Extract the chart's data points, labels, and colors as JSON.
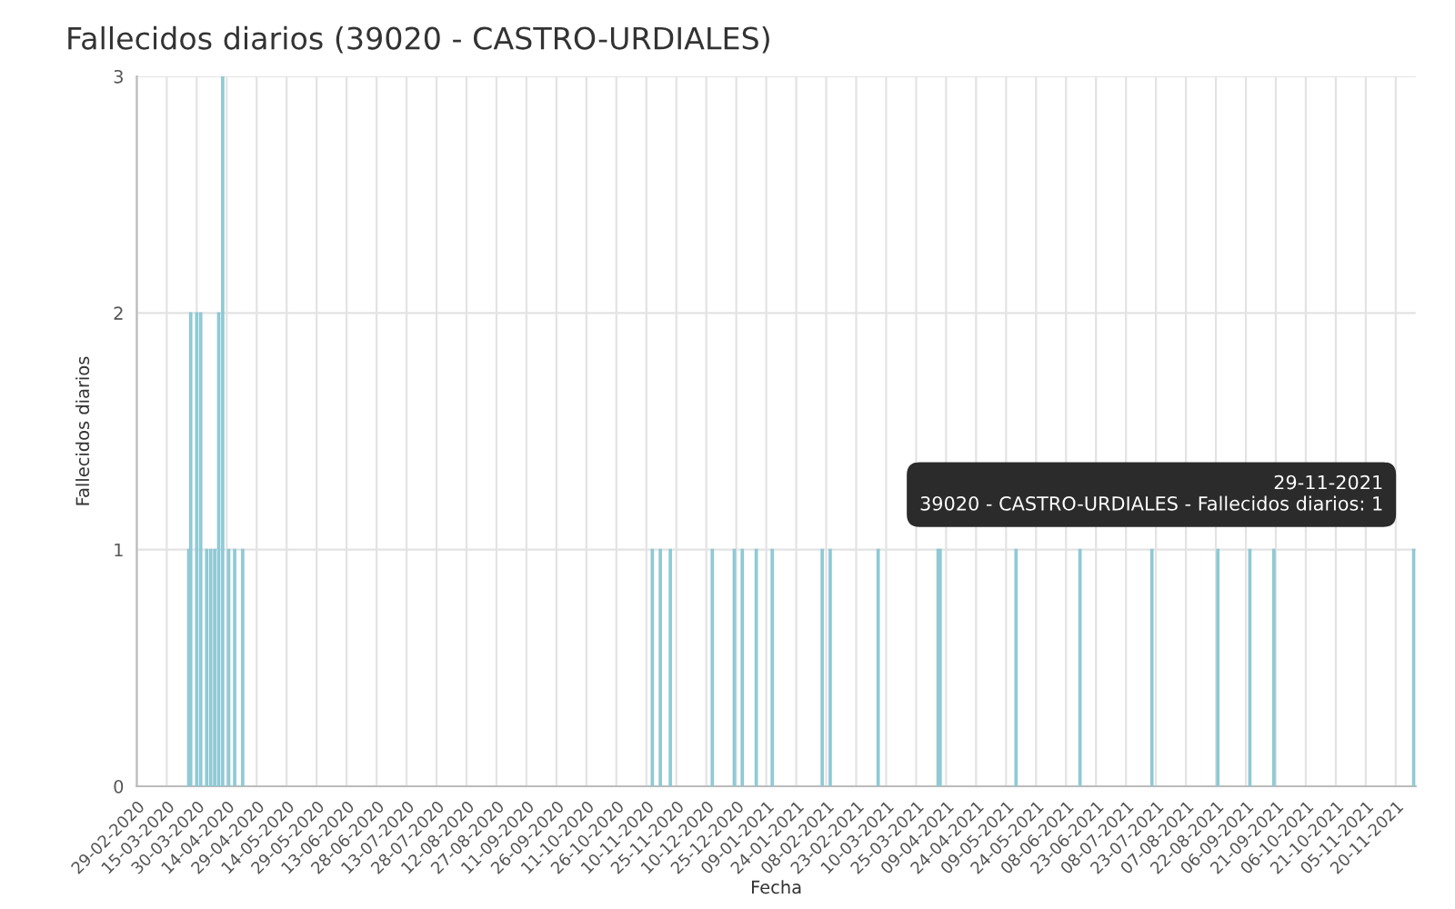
{
  "chart_data": {
    "type": "bar",
    "title": "Fallecidos diarios (39020 - CASTRO-URDIALES)",
    "xlabel": "Fecha",
    "ylabel": "Fallecidos diarios",
    "x": [
      "2020-03-26",
      "2020-03-27",
      "2020-03-30",
      "2020-04-01",
      "2020-04-04",
      "2020-04-06",
      "2020-04-08",
      "2020-04-10",
      "2020-04-12",
      "2020-04-15",
      "2020-04-18",
      "2020-04-22",
      "2020-11-13",
      "2020-11-17",
      "2020-11-22",
      "2020-12-13",
      "2020-12-24",
      "2020-12-28",
      "2021-01-04",
      "2021-01-12",
      "2021-02-06",
      "2021-02-10",
      "2021-03-06",
      "2021-04-05",
      "2021-04-06",
      "2021-05-14",
      "2021-06-15",
      "2021-07-21",
      "2021-08-23",
      "2021-09-08",
      "2021-09-20",
      "2021-11-29"
    ],
    "values": [
      1,
      2,
      2,
      2,
      1,
      1,
      1,
      2,
      3,
      1,
      1,
      1,
      1,
      1,
      1,
      1,
      1,
      1,
      1,
      1,
      1,
      1,
      1,
      1,
      1,
      1,
      1,
      1,
      1,
      1,
      1,
      1
    ],
    "color": "#a6d9e2",
    "xlim": [
      "2020-02-29",
      "2021-11-30"
    ],
    "xticks": [
      {
        "value": "2020-02-29",
        "label": "29-02-2020"
      },
      {
        "value": "2020-03-15",
        "label": "15-03-2020"
      },
      {
        "value": "2020-03-30",
        "label": "30-03-2020"
      },
      {
        "value": "2020-04-14",
        "label": "14-04-2020"
      },
      {
        "value": "2020-04-29",
        "label": "29-04-2020"
      },
      {
        "value": "2020-05-14",
        "label": "14-05-2020"
      },
      {
        "value": "2020-05-29",
        "label": "29-05-2020"
      },
      {
        "value": "2020-06-13",
        "label": "13-06-2020"
      },
      {
        "value": "2020-06-28",
        "label": "28-06-2020"
      },
      {
        "value": "2020-07-13",
        "label": "13-07-2020"
      },
      {
        "value": "2020-07-28",
        "label": "28-07-2020"
      },
      {
        "value": "2020-08-12",
        "label": "12-08-2020"
      },
      {
        "value": "2020-08-27",
        "label": "27-08-2020"
      },
      {
        "value": "2020-09-11",
        "label": "11-09-2020"
      },
      {
        "value": "2020-09-26",
        "label": "26-09-2020"
      },
      {
        "value": "2020-10-11",
        "label": "11-10-2020"
      },
      {
        "value": "2020-10-26",
        "label": "26-10-2020"
      },
      {
        "value": "2020-11-10",
        "label": "10-11-2020"
      },
      {
        "value": "2020-11-25",
        "label": "25-11-2020"
      },
      {
        "value": "2020-12-10",
        "label": "10-12-2020"
      },
      {
        "value": "2020-12-25",
        "label": "25-12-2020"
      },
      {
        "value": "2021-01-09",
        "label": "09-01-2021"
      },
      {
        "value": "2021-01-24",
        "label": "24-01-2021"
      },
      {
        "value": "2021-02-08",
        "label": "08-02-2021"
      },
      {
        "value": "2021-02-23",
        "label": "23-02-2021"
      },
      {
        "value": "2021-03-10",
        "label": "10-03-2021"
      },
      {
        "value": "2021-03-25",
        "label": "25-03-2021"
      },
      {
        "value": "2021-04-09",
        "label": "09-04-2021"
      },
      {
        "value": "2021-04-24",
        "label": "24-04-2021"
      },
      {
        "value": "2021-05-09",
        "label": "09-05-2021"
      },
      {
        "value": "2021-05-24",
        "label": "24-05-2021"
      },
      {
        "value": "2021-06-08",
        "label": "08-06-2021"
      },
      {
        "value": "2021-06-23",
        "label": "23-06-2021"
      },
      {
        "value": "2021-07-08",
        "label": "08-07-2021"
      },
      {
        "value": "2021-07-23",
        "label": "23-07-2021"
      },
      {
        "value": "2021-08-07",
        "label": "07-08-2021"
      },
      {
        "value": "2021-08-22",
        "label": "22-08-2021"
      },
      {
        "value": "2021-09-06",
        "label": "06-09-2021"
      },
      {
        "value": "2021-09-21",
        "label": "21-09-2021"
      },
      {
        "value": "2021-10-06",
        "label": "06-10-2021"
      },
      {
        "value": "2021-10-21",
        "label": "21-10-2021"
      },
      {
        "value": "2021-11-05",
        "label": "05-11-2021"
      },
      {
        "value": "2021-11-20",
        "label": "20-11-2021"
      }
    ],
    "ylim": [
      0,
      3
    ],
    "yticks": [
      0,
      1,
      2,
      3
    ],
    "grid": true,
    "annotations": [
      {
        "text": "29-11-2021\n39020 - CASTRO-URDIALES - Fallecidos diarios: 1",
        "x": "2021-11-29",
        "y": 1
      }
    ]
  }
}
